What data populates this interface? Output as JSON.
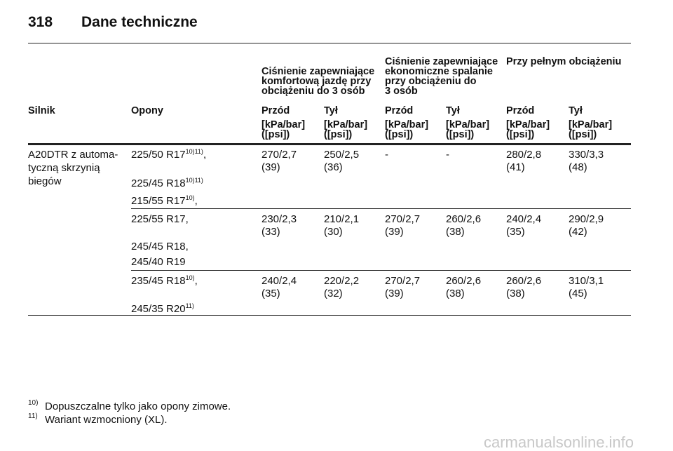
{
  "header": {
    "page": "318",
    "title": "Dane techniczne"
  },
  "table": {
    "group_headers": [
      [
        "Ciśnienie zapewniające",
        "komfortową jazdę przy",
        "obciążeniu do 3 osób"
      ],
      [
        "Ciśnienie zapewniające",
        "ekonomiczne spalanie",
        "przy obciążeniu do",
        "3 osób"
      ],
      [
        "Przy pełnym obciążeniu"
      ]
    ],
    "columns": [
      "Silnik",
      "Opony",
      "Przód",
      "Tył",
      "Przód",
      "Tył",
      "Przód",
      "Tył"
    ],
    "units": [
      [
        "[kPa/bar]",
        "([psi])"
      ],
      [
        "[kPa/bar]",
        "([psi])"
      ],
      [
        "[kPa/bar]",
        "([psi])"
      ],
      [
        "[kPa/bar]",
        "([psi])"
      ],
      [
        "[kPa/bar]",
        "([psi])"
      ],
      [
        "[kPa/bar]",
        "([psi])"
      ]
    ],
    "engine": [
      "A20DTR z automa-",
      "tyczną skrzynią",
      "biegów"
    ],
    "groups": [
      {
        "tires": [
          {
            "text": "225/50 R17",
            "sup": "10)11)",
            "suffix": ","
          },
          {
            "text": "225/45 R18",
            "sup": "10)11)"
          },
          {
            "text": "215/55 R17",
            "sup": "10)",
            "suffix": ","
          }
        ],
        "values": [
          [
            "270/2,7",
            "(39)"
          ],
          [
            "250/2,5",
            "(36)"
          ],
          [
            "-"
          ],
          [
            "-"
          ],
          [
            "280/2,8",
            "(41)"
          ],
          [
            "330/3,3",
            "(48)"
          ]
        ]
      },
      {
        "tires": [
          {
            "text": "225/55 R17,"
          },
          {
            "text": "245/45 R18,"
          },
          {
            "text": "245/40 R19"
          }
        ],
        "values": [
          [
            "230/2,3",
            "(33)"
          ],
          [
            "210/2,1",
            "(30)"
          ],
          [
            "270/2,7",
            "(39)"
          ],
          [
            "260/2,6",
            "(38)"
          ],
          [
            "240/2,4",
            "(35)"
          ],
          [
            "290/2,9",
            "(42)"
          ]
        ]
      },
      {
        "tires": [
          {
            "text": "235/45 R18",
            "sup": "10)",
            "suffix": ","
          },
          {
            "text": "245/35 R20",
            "sup": "11)"
          }
        ],
        "values": [
          [
            "240/2,4",
            "(35)"
          ],
          [
            "220/2,2",
            "(32)"
          ],
          [
            "270/2,7",
            "(39)"
          ],
          [
            "260/2,6",
            "(38)"
          ],
          [
            "260/2,6",
            "(38)"
          ],
          [
            "310/3,1",
            "(45)"
          ]
        ]
      }
    ]
  },
  "footnotes": [
    {
      "mark": "10)",
      "text": "Dopuszczalne tylko jako opony zimowe."
    },
    {
      "mark": "11)",
      "text": "Wariant wzmocniony (XL)."
    }
  ],
  "watermark": "carmanualsonline.info"
}
